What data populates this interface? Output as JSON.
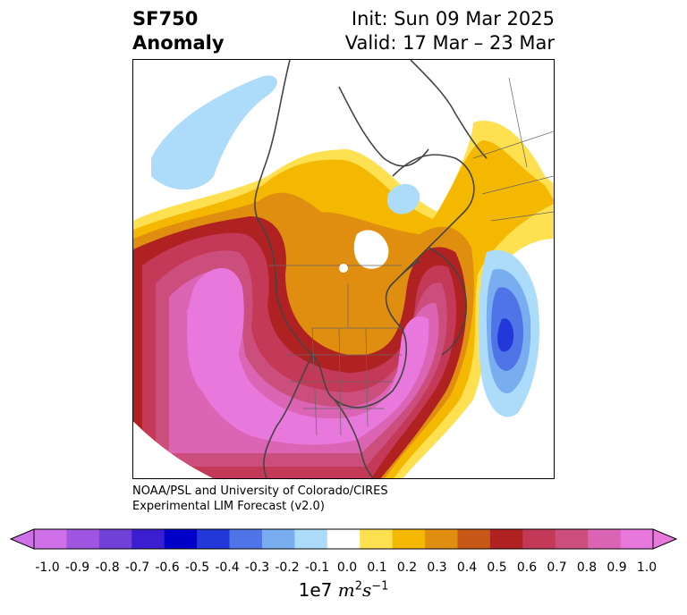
{
  "title": {
    "variable": "SF750",
    "kind": "Anomaly",
    "init": "Init: Sun 09 Mar 2025",
    "valid": "Valid: 17 Mar – 23 Mar"
  },
  "credit": {
    "line1": "NOAA/PSL and University of Colorado/CIRES",
    "line2": "Experimental LIM Forecast (v2.0)"
  },
  "colorbar": {
    "ticks": [
      "-1.0",
      "-0.9",
      "-0.8",
      "-0.7",
      "-0.6",
      "-0.5",
      "-0.4",
      "-0.3",
      "-0.2",
      "-0.1",
      "0.0",
      "0.1",
      "0.2",
      "0.3",
      "0.4",
      "0.5",
      "0.6",
      "0.7",
      "0.8",
      "0.9",
      "1.0"
    ],
    "colors": [
      "#d070e8",
      "#a055e0",
      "#7040d8",
      "#3a1ed0",
      "#0000c8",
      "#2238d8",
      "#4e74e8",
      "#78aef0",
      "#acdcfa",
      "#ffffff",
      "#ffe050",
      "#f5b800",
      "#e08e10",
      "#c85818",
      "#b02222",
      "#c43858",
      "#cc4e7c",
      "#dc64b4",
      "#e878dc"
    ],
    "under_color": "#d070e8",
    "over_color": "#e878dc",
    "unit_base": "1e7",
    "unit_m": "m",
    "unit_m_exp": "2",
    "unit_s": "s",
    "unit_s_exp": "−1"
  }
}
